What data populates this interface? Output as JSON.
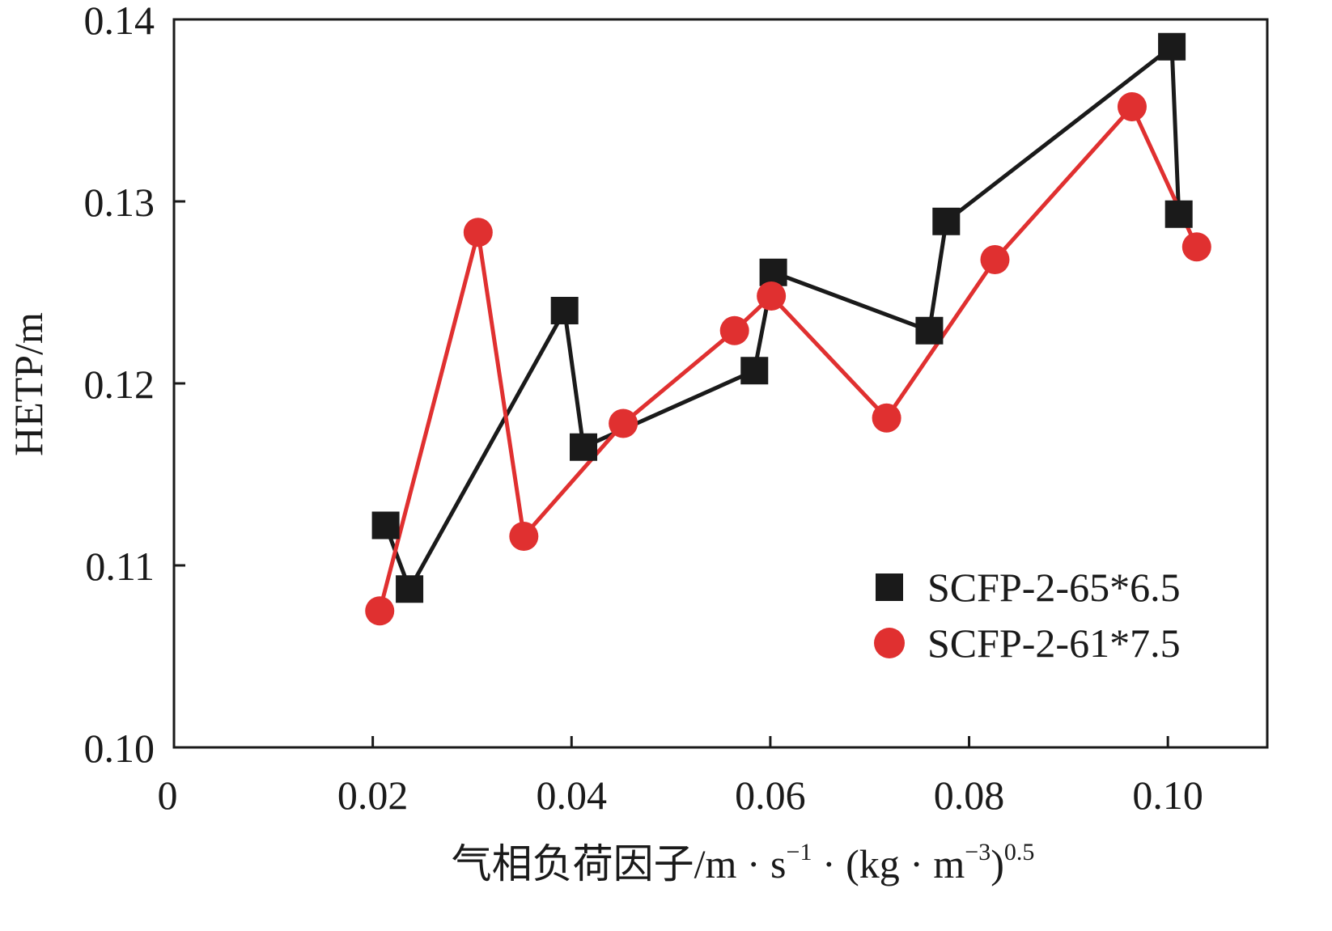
{
  "chart_data": {
    "type": "line",
    "xlabel": {
      "main": "气相负荷因子/m · s",
      "sup1": "−1",
      "mid": " · (kg · m",
      "sup2": "−3",
      "close": ")",
      "sup3": "0.5"
    },
    "ylabel": "HETP/m",
    "xlim": [
      0,
      0.11
    ],
    "ylim": [
      0.1,
      0.14
    ],
    "x_ticks": [
      {
        "value": 0,
        "label": "0"
      },
      {
        "value": 0.02,
        "label": "0.02"
      },
      {
        "value": 0.04,
        "label": "0.04"
      },
      {
        "value": 0.06,
        "label": "0.06"
      },
      {
        "value": 0.08,
        "label": "0.08"
      },
      {
        "value": 0.1,
        "label": "0.10"
      }
    ],
    "y_ticks": [
      {
        "value": 0.1,
        "label": "0.10"
      },
      {
        "value": 0.11,
        "label": "0.11"
      },
      {
        "value": 0.12,
        "label": "0.12"
      },
      {
        "value": 0.13,
        "label": "0.13"
      },
      {
        "value": 0.14,
        "label": "0.14"
      }
    ],
    "grid": false,
    "legend_position": "bottom-right",
    "series": [
      {
        "name": "SCFP-2-65*6.5",
        "color": "#1a1a1a",
        "marker": "square",
        "x": [
          0.0213,
          0.0237,
          0.0393,
          0.0412,
          0.0584,
          0.0603,
          0.076,
          0.0777,
          0.1004,
          0.1011
        ],
        "y": [
          0.1122,
          0.1087,
          0.124,
          0.1165,
          0.1207,
          0.1261,
          0.1229,
          0.1289,
          0.1385,
          0.1293
        ]
      },
      {
        "name": "SCFP-2-61*7.5",
        "color": "#e03030",
        "marker": "circle",
        "x": [
          0.0207,
          0.0306,
          0.0352,
          0.0452,
          0.0564,
          0.0601,
          0.0717,
          0.0826,
          0.0964,
          0.1029
        ],
        "y": [
          0.1075,
          0.1283,
          0.1116,
          0.1178,
          0.1229,
          0.1248,
          0.1181,
          0.1268,
          0.1352,
          0.1275
        ]
      }
    ]
  }
}
